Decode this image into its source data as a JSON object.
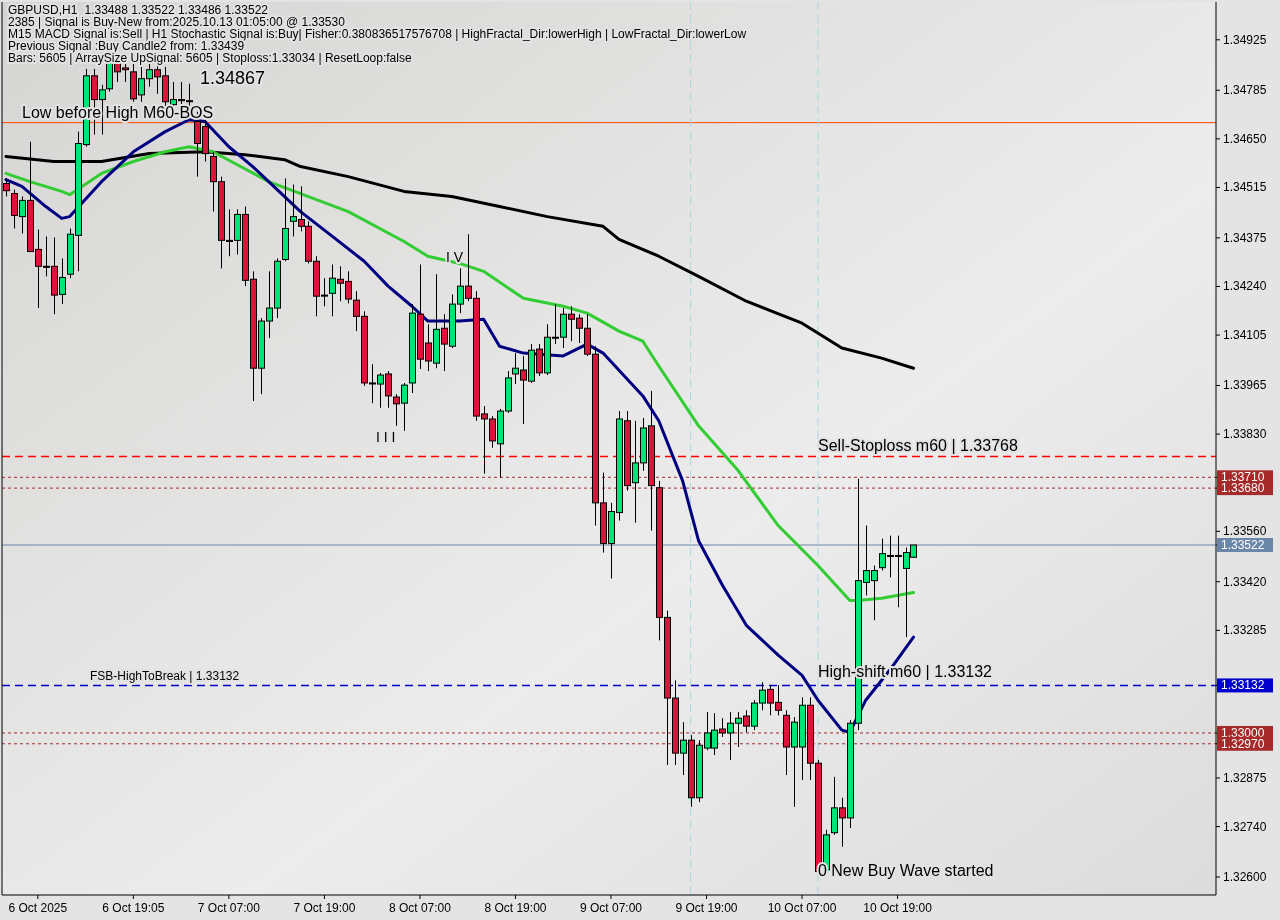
{
  "chart_data": {
    "type": "candlestick",
    "title": "GBPUSD,H1",
    "subtitle": "1.33488 1.33522 1.33486 1.33522",
    "x": [
      "2025-10-06T03:00",
      "2025-10-06T04:00",
      "2025-10-06T05:00",
      "2025-10-06T06:00",
      "2025-10-06T07:00",
      "2025-10-06T08:00",
      "2025-10-06T09:00",
      "2025-10-06T10:00",
      "2025-10-06T11:00",
      "2025-10-06T12:00",
      "2025-10-06T13:00",
      "2025-10-06T14:00",
      "2025-10-06T15:00",
      "2025-10-06T16:00",
      "2025-10-06T17:00",
      "2025-10-06T18:00",
      "2025-10-06T19:00",
      "2025-10-06T20:00",
      "2025-10-06T21:00",
      "2025-10-06T22:00",
      "2025-10-06T23:00",
      "2025-10-07T00:00",
      "2025-10-07T01:00",
      "2025-10-07T02:00",
      "2025-10-07T03:00",
      "2025-10-07T04:00",
      "2025-10-07T05:00",
      "2025-10-07T06:00",
      "2025-10-07T07:00",
      "2025-10-07T08:00",
      "2025-10-07T09:00",
      "2025-10-07T10:00",
      "2025-10-07T11:00",
      "2025-10-07T12:00",
      "2025-10-07T13:00",
      "2025-10-07T14:00",
      "2025-10-07T15:00",
      "2025-10-07T16:00",
      "2025-10-07T17:00",
      "2025-10-07T18:00",
      "2025-10-07T19:00",
      "2025-10-07T20:00",
      "2025-10-07T21:00",
      "2025-10-07T22:00",
      "2025-10-07T23:00",
      "2025-10-08T00:00",
      "2025-10-08T01:00",
      "2025-10-08T02:00",
      "2025-10-08T03:00",
      "2025-10-08T04:00",
      "2025-10-08T05:00",
      "2025-10-08T06:00",
      "2025-10-08T07:00",
      "2025-10-08T08:00",
      "2025-10-08T09:00",
      "2025-10-08T10:00",
      "2025-10-08T11:00",
      "2025-10-08T12:00",
      "2025-10-08T13:00",
      "2025-10-08T14:00",
      "2025-10-08T15:00",
      "2025-10-08T16:00",
      "2025-10-08T17:00",
      "2025-10-08T18:00",
      "2025-10-08T19:00",
      "2025-10-08T20:00",
      "2025-10-08T21:00",
      "2025-10-08T22:00",
      "2025-10-08T23:00",
      "2025-10-09T00:00",
      "2025-10-09T01:00",
      "2025-10-09T02:00",
      "2025-10-09T03:00",
      "2025-10-09T04:00",
      "2025-10-09T05:00",
      "2025-10-09T06:00",
      "2025-10-09T07:00",
      "2025-10-09T08:00",
      "2025-10-09T09:00",
      "2025-10-09T10:00",
      "2025-10-09T11:00",
      "2025-10-09T12:00",
      "2025-10-09T13:00",
      "2025-10-09T14:00",
      "2025-10-09T15:00",
      "2025-10-09T16:00",
      "2025-10-09T17:00",
      "2025-10-09T18:00",
      "2025-10-09T19:00",
      "2025-10-09T20:00",
      "2025-10-09T21:00",
      "2025-10-09T22:00",
      "2025-10-09T23:00",
      "2025-10-10T00:00",
      "2025-10-10T01:00",
      "2025-10-10T02:00",
      "2025-10-10T03:00",
      "2025-10-10T04:00",
      "2025-10-10T05:00",
      "2025-10-10T06:00",
      "2025-10-10T07:00",
      "2025-10-10T08:00",
      "2025-10-10T09:00",
      "2025-10-10T10:00",
      "2025-10-10T11:00",
      "2025-10-10T12:00",
      "2025-10-10T13:00",
      "2025-10-10T14:00",
      "2025-10-10T15:00",
      "2025-10-10T16:00",
      "2025-10-10T17:00",
      "2025-10-10T18:00",
      "2025-10-10T19:00",
      "2025-10-10T20:00",
      "2025-10-10T21:00"
    ],
    "ohlc": [
      [
        1.34526,
        1.34537,
        1.3449,
        1.34506
      ],
      [
        1.34498,
        1.34509,
        1.34401,
        1.34437
      ],
      [
        1.34434,
        1.3449,
        1.34387,
        1.34479
      ],
      [
        1.34479,
        1.34642,
        1.34337,
        1.34337
      ],
      [
        1.34343,
        1.34398,
        1.3418,
        1.34296
      ],
      [
        1.34296,
        1.34379,
        1.34268,
        1.34295
      ],
      [
        1.34296,
        1.34376,
        1.34163,
        1.34216
      ],
      [
        1.34218,
        1.34318,
        1.34191,
        1.34265
      ],
      [
        1.34274,
        1.34401,
        1.34263,
        1.34385
      ],
      [
        1.34382,
        1.3467,
        1.34282,
        1.34637
      ],
      [
        1.34634,
        1.34844,
        1.34628,
        1.34825
      ],
      [
        1.34825,
        1.34844,
        1.34662,
        1.34759
      ],
      [
        1.34759,
        1.348,
        1.34662,
        1.34786
      ],
      [
        1.34789,
        1.34867,
        1.34781,
        1.34864
      ],
      [
        1.34864,
        1.34867,
        1.34808,
        1.34836
      ],
      [
        1.34847,
        1.34858,
        1.34808,
        1.34842
      ],
      [
        1.34836,
        1.34858,
        1.34753,
        1.34761
      ],
      [
        1.34772,
        1.3485,
        1.34753,
        1.34817
      ],
      [
        1.34817,
        1.34858,
        1.34795,
        1.34842
      ],
      [
        1.34842,
        1.34858,
        1.34775,
        1.34822
      ],
      [
        1.34825,
        1.3485,
        1.34725,
        1.34753
      ],
      [
        1.34745,
        1.34808,
        1.34725,
        1.34759
      ],
      [
        1.34759,
        1.34808,
        1.34731,
        1.34756
      ],
      [
        1.34756,
        1.34803,
        1.34706,
        1.34753
      ],
      [
        1.34698,
        1.34725,
        1.34545,
        1.34637
      ],
      [
        1.34684,
        1.34703,
        1.34587,
        1.34609
      ],
      [
        1.34601,
        1.34614,
        1.34448,
        1.34531
      ],
      [
        1.34531,
        1.34545,
        1.3429,
        1.34368
      ],
      [
        1.34368,
        1.34454,
        1.34324,
        1.34365
      ],
      [
        1.34368,
        1.34454,
        1.34329,
        1.3444
      ],
      [
        1.3444,
        1.34462,
        1.34241,
        1.34257
      ],
      [
        1.3426,
        1.34282,
        1.33922,
        1.34013
      ],
      [
        1.34013,
        1.34152,
        1.33941,
        1.34144
      ],
      [
        1.34144,
        1.34282,
        1.34097,
        1.3418
      ],
      [
        1.3418,
        1.34318,
        1.34152,
        1.3431
      ],
      [
        1.34315,
        1.3454,
        1.3431,
        1.34401
      ],
      [
        1.34421,
        1.34523,
        1.34379,
        1.34434
      ],
      [
        1.34426,
        1.34518,
        1.34393,
        1.34407
      ],
      [
        1.34407,
        1.34421,
        1.34304,
        1.3431
      ],
      [
        1.3431,
        1.34324,
        1.34157,
        1.34213
      ],
      [
        1.34216,
        1.34263,
        1.34185,
        1.34214
      ],
      [
        1.34221,
        1.34301,
        1.34157,
        1.34263
      ],
      [
        1.3426,
        1.34296,
        1.34199,
        1.34249
      ],
      [
        1.34254,
        1.34282,
        1.34193,
        1.34205
      ],
      [
        1.34202,
        1.34227,
        1.34116,
        1.34157
      ],
      [
        1.34157,
        1.34171,
        1.33964,
        1.33972
      ],
      [
        1.33972,
        1.34024,
        1.33916,
        1.3397
      ],
      [
        1.33969,
        1.34,
        1.33903,
        1.33994
      ],
      [
        1.33997,
        1.34005,
        1.33903,
        1.33936
      ],
      [
        1.33933,
        1.33941,
        1.33853,
        1.33914
      ],
      [
        1.33916,
        1.33972,
        1.33839,
        1.33966
      ],
      [
        1.33972,
        1.34191,
        1.33944,
        1.34166
      ],
      [
        1.34163,
        1.34301,
        1.34011,
        1.34038
      ],
      [
        1.34083,
        1.34135,
        1.34005,
        1.34033
      ],
      [
        1.34027,
        1.34274,
        1.34013,
        1.34121
      ],
      [
        1.34124,
        1.34163,
        1.34005,
        1.3408
      ],
      [
        1.34074,
        1.34218,
        1.34069,
        1.34191
      ],
      [
        1.34191,
        1.3429,
        1.34166,
        1.34241
      ],
      [
        1.34241,
        1.34385,
        1.34199,
        1.34207
      ],
      [
        1.34207,
        1.34227,
        1.33867,
        1.3388
      ],
      [
        1.33886,
        1.33908,
        1.3372,
        1.33872
      ],
      [
        1.33872,
        1.3388,
        1.33792,
        1.33811
      ],
      [
        1.33803,
        1.339,
        1.33709,
        1.33894
      ],
      [
        1.33894,
        1.34005,
        1.33889,
        1.33986
      ],
      [
        1.33997,
        1.34055,
        1.33969,
        1.34013
      ],
      [
        1.34008,
        1.34047,
        1.33858,
        1.3398
      ],
      [
        1.33977,
        1.3408,
        1.33972,
        1.34063
      ],
      [
        1.34066,
        1.3408,
        1.33991,
        1.34
      ],
      [
        1.34,
        1.34135,
        1.33994,
        1.34099
      ],
      [
        1.34099,
        1.34191,
        1.3408,
        1.34098
      ],
      [
        1.34099,
        1.3418,
        1.34069,
        1.34163
      ],
      [
        1.34163,
        1.34185,
        1.34088,
        1.34149
      ],
      [
        1.34152,
        1.34163,
        1.34083,
        1.34124
      ],
      [
        1.34124,
        1.34163,
        1.34047,
        1.34052
      ],
      [
        1.34052,
        1.34074,
        1.33576,
        1.33639
      ],
      [
        1.33639,
        1.33723,
        1.33501,
        1.33526
      ],
      [
        1.33526,
        1.33639,
        1.33429,
        1.33615
      ],
      [
        1.33612,
        1.33894,
        1.3359,
        1.33872
      ],
      [
        1.33867,
        1.33894,
        1.33673,
        1.33687
      ],
      [
        1.33695,
        1.33867,
        1.33584,
        1.3375
      ],
      [
        1.3375,
        1.33875,
        1.33728,
        1.33847
      ],
      [
        1.33853,
        1.3395,
        1.33562,
        1.33687
      ],
      [
        1.33681,
        1.337,
        1.33257,
        1.33321
      ],
      [
        1.33321,
        1.3334,
        1.32911,
        1.33097
      ],
      [
        1.33097,
        1.33146,
        1.32911,
        1.32944
      ],
      [
        1.32944,
        1.3303,
        1.32883,
        1.3298
      ],
      [
        1.3298,
        1.32994,
        1.32795,
        1.3282
      ],
      [
        1.3282,
        1.3298,
        1.32808,
        1.32966
      ],
      [
        1.32958,
        1.33058,
        1.32952,
        1.33
      ],
      [
        1.32958,
        1.33055,
        1.32939,
        1.33008
      ],
      [
        1.33011,
        1.33041,
        1.32989,
        1.33
      ],
      [
        1.33,
        1.33058,
        1.32925,
        1.33027
      ],
      [
        1.33027,
        1.33058,
        1.32961,
        1.33041
      ],
      [
        1.33047,
        1.33063,
        1.33002,
        1.33019
      ],
      [
        1.33019,
        1.33091,
        1.33008,
        1.33083
      ],
      [
        1.33083,
        1.33141,
        1.33063,
        1.33119
      ],
      [
        1.33121,
        1.33133,
        1.33049,
        1.33083
      ],
      [
        1.33085,
        1.33133,
        1.33049,
        1.33063
      ],
      [
        1.33049,
        1.33063,
        1.32883,
        1.32961
      ],
      [
        1.32961,
        1.33044,
        1.32795,
        1.3303
      ],
      [
        1.32961,
        1.33099,
        1.32869,
        1.33077
      ],
      [
        1.33077,
        1.33099,
        1.32869,
        1.32916
      ],
      [
        1.32916,
        1.32925,
        1.32606,
        1.32615
      ],
      [
        1.3262,
        1.32731,
        1.32615,
        1.32717
      ],
      [
        1.32723,
        1.32878,
        1.32717,
        1.32792
      ],
      [
        1.32792,
        1.3282,
        1.32684,
        1.32764
      ],
      [
        1.32764,
        1.33036,
        1.32736,
        1.33027
      ],
      [
        1.33027,
        1.33706,
        1.33008,
        1.33423
      ],
      [
        1.33418,
        1.33576,
        1.33382,
        1.33451
      ],
      [
        1.33423,
        1.33465,
        1.33313,
        1.33451
      ],
      [
        1.33459,
        1.3354,
        1.33451,
        1.33498
      ],
      [
        1.33493,
        1.33548,
        1.33432,
        1.3349
      ],
      [
        1.33493,
        1.33548,
        1.33349,
        1.33492
      ],
      [
        1.33457,
        1.33515,
        1.33266,
        1.33501
      ],
      [
        1.33488,
        1.33522,
        1.33486,
        1.33522
      ]
    ],
    "colors": [
      "#dc143c",
      "#dc143c",
      "#00e676",
      "#dc143c",
      "#dc143c",
      "#dc143c",
      "#dc143c",
      "#00e676",
      "#00e676",
      "#00e676",
      "#00e676",
      "#dc143c",
      "#00e676",
      "#00e676",
      "#dc143c",
      "#dc143c",
      "#dc143c",
      "#00e676",
      "#00e676",
      "#dc143c",
      "#dc143c",
      "#00e676",
      "#dc143c",
      "#dc143c",
      "#dc143c",
      "#dc143c",
      "#dc143c",
      "#dc143c",
      "#dc143c",
      "#00e676",
      "#dc143c",
      "#dc143c",
      "#00e676",
      "#00e676",
      "#00e676",
      "#00e676",
      "#00e676",
      "#dc143c",
      "#dc143c",
      "#dc143c",
      "#dc143c",
      "#00e676",
      "#dc143c",
      "#dc143c",
      "#dc143c",
      "#dc143c",
      "#dc143c",
      "#00e676",
      "#dc143c",
      "#dc143c",
      "#00e676",
      "#00e676",
      "#dc143c",
      "#dc143c",
      "#00e676",
      "#dc143c",
      "#00e676",
      "#00e676",
      "#dc143c",
      "#dc143c",
      "#dc143c",
      "#dc143c",
      "#00e676",
      "#00e676",
      "#00e676",
      "#dc143c",
      "#00e676",
      "#dc143c",
      "#00e676",
      "#dc143c",
      "#00e676",
      "#dc143c",
      "#dc143c",
      "#dc143c",
      "#dc143c",
      "#dc143c",
      "#00e676",
      "#00e676",
      "#dc143c",
      "#00e676",
      "#00e676",
      "#dc143c",
      "#dc143c",
      "#dc143c",
      "#dc143c",
      "#00e676",
      "#dc143c",
      "#00e676",
      "#00e676",
      "#00e676",
      "#dc143c",
      "#00e676",
      "#00e676",
      "#dc143c",
      "#00e676",
      "#00e676",
      "#dc143c",
      "#dc143c",
      "#dc143c",
      "#00e676",
      "#00e676",
      "#dc143c",
      "#dc143c",
      "#00e676",
      "#00e676",
      "#dc143c",
      "#00e676",
      "#00e676",
      "#00e676",
      "#00e676",
      "#00e676",
      "#dc143c",
      "#dc143c",
      "#00e676",
      "#00e676"
    ],
    "series": [
      {
        "type": "line",
        "color": "#000000",
        "x": [
          "2025-10-06T03:00",
          "2025-10-06T09:00",
          "2025-10-06T15:00",
          "2025-10-06T21:00",
          "2025-10-07T04:00",
          "2025-10-07T09:00",
          "2025-10-07T14:00",
          "2025-10-07T16:00",
          "2025-10-07T22:00",
          "2025-10-08T05:00",
          "2025-10-08T11:00",
          "2025-10-08T17:00",
          "2025-10-08T23:00",
          "2025-10-09T06:00",
          "2025-10-09T08:00",
          "2025-10-09T13:00",
          "2025-10-09T18:00",
          "2025-10-10T00:00",
          "2025-10-10T07:00",
          "2025-10-10T12:00",
          "2025-10-10T17:00",
          "2025-10-10T21:00"
        ],
        "values": [
          1.34601,
          1.34587,
          1.34587,
          1.34609,
          1.34614,
          1.34606,
          1.34592,
          1.34573,
          1.34545,
          1.34504,
          1.3449,
          1.34462,
          1.34434,
          1.34407,
          1.34371,
          1.34324,
          1.34268,
          1.34199,
          1.34138,
          1.34069,
          1.34041,
          1.34013
        ]
      },
      {
        "type": "line",
        "color": "#32cd32",
        "x": [
          "2025-10-06T03:00",
          "2025-10-06T06:00",
          "2025-10-06T10:00",
          "2025-10-06T11:00",
          "2025-10-06T15:00",
          "2025-10-06T19:00",
          "2025-10-06T23:00",
          "2025-10-07T02:00",
          "2025-10-07T05:00",
          "2025-10-07T09:00",
          "2025-10-07T12:00",
          "2025-10-07T16:00",
          "2025-10-07T22:00",
          "2025-10-08T05:00",
          "2025-10-08T08:00",
          "2025-10-08T12:00",
          "2025-10-08T15:00",
          "2025-10-08T20:00",
          "2025-10-09T01:00",
          "2025-10-09T04:00",
          "2025-10-09T08:00",
          "2025-10-09T11:00",
          "2025-10-09T13:00",
          "2025-10-09T18:00",
          "2025-10-09T23:00",
          "2025-10-10T04:00",
          "2025-10-10T09:00",
          "2025-10-10T13:00",
          "2025-10-10T14:00",
          "2025-10-10T17:00",
          "2025-10-10T21:00"
        ],
        "values": [
          1.34554,
          1.34531,
          1.34504,
          1.34495,
          1.34554,
          1.34587,
          1.34614,
          1.34628,
          1.34614,
          1.34567,
          1.34531,
          1.34498,
          1.34448,
          1.34365,
          1.34324,
          1.34304,
          1.34282,
          1.34207,
          1.34185,
          1.34166,
          1.34116,
          1.34088,
          1.34019,
          1.33853,
          1.33728,
          1.33576,
          1.33465,
          1.33368,
          1.33368,
          1.33374,
          1.3339
        ]
      },
      {
        "type": "line",
        "color": "#000080",
        "x": [
          "2025-10-06T03:00",
          "2025-10-06T05:00",
          "2025-10-06T08:00",
          "2025-10-06T10:00",
          "2025-10-06T11:00",
          "2025-10-06T15:00",
          "2025-10-06T19:00",
          "2025-10-06T23:00",
          "2025-10-07T02:00",
          "2025-10-07T04:00",
          "2025-10-07T07:00",
          "2025-10-07T10:00",
          "2025-10-07T12:00",
          "2025-10-07T16:00",
          "2025-10-07T20:00",
          "2025-10-08T00:00",
          "2025-10-08T03:00",
          "2025-10-08T06:00",
          "2025-10-08T08:00",
          "2025-10-08T12:00",
          "2025-10-08T15:00",
          "2025-10-08T17:00",
          "2025-10-08T20:00",
          "2025-10-09T01:00",
          "2025-10-09T04:00",
          "2025-10-09T06:00",
          "2025-10-09T11:00",
          "2025-10-09T13:00",
          "2025-10-09T16:00",
          "2025-10-09T18:00",
          "2025-10-09T21:00",
          "2025-10-10T00:00",
          "2025-10-10T04:00",
          "2025-10-10T07:00",
          "2025-10-10T09:00",
          "2025-10-10T12:00",
          "2025-10-10T13:00",
          "2025-10-10T15:00",
          "2025-10-10T18:00",
          "2025-10-10T21:00"
        ],
        "values": [
          1.34537,
          1.34518,
          1.34462,
          1.34429,
          1.34434,
          1.34531,
          1.34614,
          1.3467,
          1.34703,
          1.34698,
          1.34628,
          1.34573,
          1.34531,
          1.34448,
          1.34379,
          1.3431,
          1.34241,
          1.34185,
          1.34144,
          1.34144,
          1.34149,
          1.34074,
          1.34055,
          1.34047,
          1.3408,
          1.34055,
          1.33936,
          1.33867,
          1.337,
          1.33534,
          1.3341,
          1.33299,
          1.33216,
          1.3316,
          1.33091,
          1.33008,
          1.33002,
          1.33091,
          1.33174,
          1.33266
        ]
      }
    ],
    "xlim": [
      "2025-10-06T02:30",
      "2025-10-12T11:00"
    ],
    "xticks": [
      {
        "value": "2025-10-06T07:00",
        "label": "6 Oct 2025"
      },
      {
        "value": "2025-10-06T19:00",
        "label": "6 Oct 19:05"
      },
      {
        "value": "2025-10-07T07:00",
        "label": "7 Oct 07:00"
      },
      {
        "value": "2025-10-07T19:00",
        "label": "7 Oct 19:00"
      },
      {
        "value": "2025-10-08T07:00",
        "label": "8 Oct 07:00"
      },
      {
        "value": "2025-10-08T19:00",
        "label": "8 Oct 19:00"
      },
      {
        "value": "2025-10-09T07:00",
        "label": "9 Oct 07:00"
      },
      {
        "value": "2025-10-09T19:00",
        "label": "9 Oct 19:00"
      },
      {
        "value": "2025-10-10T07:00",
        "label": "10 Oct 07:00"
      },
      {
        "value": "2025-10-10T19:00",
        "label": "10 Oct 19:00"
      }
    ],
    "ylim": [
      1.3255,
      1.3503
    ],
    "yticks": [
      {
        "value": 1.34925,
        "label": "1.34925"
      },
      {
        "value": 1.34785,
        "label": "1.34785"
      },
      {
        "value": 1.3465,
        "label": "1.34650"
      },
      {
        "value": 1.34515,
        "label": "1.34515"
      },
      {
        "value": 1.34375,
        "label": "1.34375"
      },
      {
        "value": 1.3424,
        "label": "1.34240"
      },
      {
        "value": 1.34105,
        "label": "1.34105"
      },
      {
        "value": 1.33965,
        "label": "1.33965"
      },
      {
        "value": 1.3383,
        "label": "1.33830"
      },
      {
        "value": 1.3371,
        "label": "1.33710"
      },
      {
        "value": 1.3368,
        "label": "1.33680"
      },
      {
        "value": 1.33522,
        "label": "1.33522"
      },
      {
        "value": 1.3356,
        "label": "1.33560"
      },
      {
        "value": 1.3342,
        "label": "1.33420"
      },
      {
        "value": 1.33285,
        "label": "1.33285"
      },
      {
        "value": 1.33132,
        "label": "1.33132"
      },
      {
        "value": 1.33,
        "label": "1.33000"
      },
      {
        "value": 1.3297,
        "label": "1.32970"
      },
      {
        "value": 1.32875,
        "label": "1.32875"
      },
      {
        "value": 1.3274,
        "label": "1.32740"
      },
      {
        "value": 1.326,
        "label": "1.32600"
      }
    ],
    "ref_lines": [
      {
        "axis": "y",
        "value": 1.34695,
        "label": "Low before High  M60-BOS",
        "color": "#ff4500",
        "line_style": "solid"
      },
      {
        "axis": "y",
        "value": 1.33768,
        "label": "Sell-Stoploss m60 | 1.33768",
        "color": "#ff0000",
        "line_style": "dashed"
      },
      {
        "axis": "y",
        "value": 1.3371,
        "color": "#a52a2a",
        "line_style": "dotted"
      },
      {
        "axis": "y",
        "value": 1.3368,
        "color": "#a52a2a",
        "line_style": "dotted"
      },
      {
        "axis": "y",
        "value": 1.33522,
        "color": "#6a86a8",
        "line_style": "solid"
      },
      {
        "axis": "y",
        "value": 1.33132,
        "label": "FSB-HighToBreak | 1.33132",
        "color": "#0000cd",
        "line_style": "dashed"
      },
      {
        "axis": "y",
        "value": 1.33,
        "color": "#a52a2a",
        "line_style": "dotted"
      },
      {
        "axis": "y",
        "value": 1.3297,
        "color": "#a52a2a",
        "line_style": "dotted"
      },
      {
        "axis": "x",
        "value": "2025-10-09T17:00",
        "color": "#a8d8e0",
        "line_style": "dashed"
      },
      {
        "axis": "x",
        "value": "2025-10-10T09:00",
        "color": "#a8d8e0",
        "line_style": "dashed"
      }
    ],
    "annotations": [
      "2385 | Signal is Buy-New from:2025.10.13 01:05:00 @ 1.33530",
      "M15 MACD Signal is:Sell | H1 Stochastic Signal is:Buy| Fisher:0.380836517576708 | HighFractal_Dir:lowerHigh | LowFractal_Dir:lowerLow",
      "Previous Signal :Buy Candle2 from: 1.33439",
      "Bars: 5605 | ArraySize UpSignal: 5605 | Stoploss:1.33034 | ResetLoop:false",
      "1.34867",
      "I V",
      "I I I",
      {
        "text": "High-shift m60 | 1.33132",
        "x": "2025-10-10T09:00",
        "y": 1.33132
      },
      {
        "text": "0 New Buy Wave started",
        "x": "2025-10-10T09:00",
        "y": 1.3258
      }
    ],
    "grid": false
  }
}
